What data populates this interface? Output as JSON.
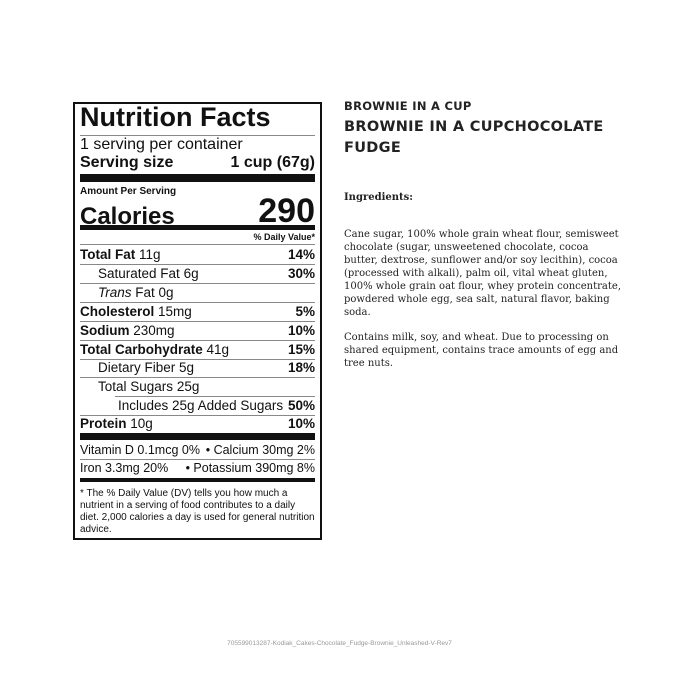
{
  "label": {
    "title": "Nutrition Facts",
    "servings": "1 serving per container",
    "serving_size_label": "Serving size",
    "serving_size_value": "1 cup (67g)",
    "amount_per_serving": "Amount Per Serving",
    "calories_label": "Calories",
    "calories_value": "290",
    "dv_header": "% Daily Value*",
    "rows": [
      {
        "name": "Total Fat",
        "amount": "11g",
        "dv": "14%"
      },
      {
        "name": "Saturated Fat",
        "amount": "6g",
        "dv": "30%"
      },
      {
        "name": "Trans",
        "amount": "Fat 0g",
        "dv": ""
      },
      {
        "name": "Cholesterol",
        "amount": "15mg",
        "dv": "5%"
      },
      {
        "name": "Sodium",
        "amount": "230mg",
        "dv": "10%"
      },
      {
        "name": "Total Carbohydrate",
        "amount": "41g",
        "dv": "15%"
      },
      {
        "name": "Dietary Fiber",
        "amount": "5g",
        "dv": "18%"
      },
      {
        "name": "Total Sugars",
        "amount": "25g",
        "dv": ""
      },
      {
        "name": "Includes 25g Added Sugars",
        "amount": "",
        "dv": "50%"
      },
      {
        "name": "Protein",
        "amount": "10g",
        "dv": "10%"
      }
    ],
    "vitamins": [
      {
        "left": "Vitamin D 0.1mcg 0%",
        "right": "• Calcium 30mg 2%"
      },
      {
        "left": "Iron 3.3mg 20%",
        "right": "• Potassium 390mg 8%"
      }
    ],
    "footnote": "* The % Daily Value (DV) tells you how much a nutrient in a serving of food contributes to a daily diet. 2,000 calories a day is used for general nutrition advice."
  },
  "product": {
    "name": "BROWNIE IN A CUP",
    "full_name": "BROWNIE IN A CUPCHOCOLATE FUDGE",
    "ingredients_heading": "Ingredients:",
    "ingredients": "Cane sugar, 100% whole grain wheat flour, semisweet chocolate (sugar, unsweetened chocolate, cocoa butter, dextrose, sunflower and/or soy lecithin), cocoa (processed with alkali), palm oil, vital wheat gluten, 100% whole grain oat flour, whey protein concentrate, powdered whole egg, sea salt, natural flavor, baking soda.",
    "allergens": "Contains milk, soy, and wheat. Due to processing on shared equipment, contains trace amounts of egg and tree nuts."
  },
  "file_caption": "705599013287-Kodiak_Cakes-Chocolate_Fudge-Brownie_Unleashed-V-Rev7"
}
